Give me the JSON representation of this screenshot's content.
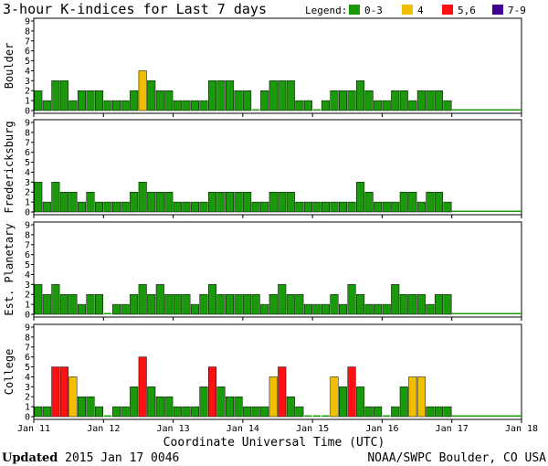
{
  "title": "3-hour K-indices for Last 7 days",
  "legend": {
    "label": "Legend:",
    "items": [
      {
        "label": "0-3",
        "color": "#1a9a0a"
      },
      {
        "label": "4",
        "color": "#f0c000"
      },
      {
        "label": "5,6",
        "color": "#ff1010"
      },
      {
        "label": "7-9",
        "color": "#400090"
      }
    ]
  },
  "xlabel": "Coordinate Universal Time (UTC)",
  "footer": {
    "updated_label": "Updated",
    "updated_value": "2015 Jan 17 0046",
    "source": "NOAA/SWPC Boulder, CO USA"
  },
  "chart_data": {
    "type": "bar",
    "x_tick_labels": [
      "Jan 11",
      "Jan 12",
      "Jan 13",
      "Jan 14",
      "Jan 15",
      "Jan 16",
      "Jan 17",
      "Jan 18"
    ],
    "y_ticks": [
      0,
      1,
      2,
      3,
      4,
      5,
      6,
      7,
      8,
      9
    ],
    "ylim": [
      0,
      9
    ],
    "bins_per_day": 8,
    "grid": false,
    "panels": [
      {
        "name": "Boulder",
        "values": [
          2,
          1,
          3,
          3,
          1,
          2,
          2,
          2,
          1,
          1,
          1,
          2,
          4,
          3,
          2,
          2,
          1,
          1,
          1,
          1,
          3,
          3,
          3,
          2,
          2,
          0,
          2,
          3,
          3,
          3,
          1,
          1,
          0,
          1,
          2,
          2,
          2,
          3,
          2,
          1,
          1,
          2,
          2,
          1,
          2,
          2,
          2,
          1
        ]
      },
      {
        "name": "Fredericksburg",
        "values": [
          3,
          1,
          3,
          2,
          2,
          1,
          2,
          1,
          1,
          1,
          1,
          2,
          3,
          2,
          2,
          2,
          1,
          1,
          1,
          1,
          2,
          2,
          2,
          2,
          2,
          1,
          1,
          2,
          2,
          2,
          1,
          1,
          1,
          1,
          1,
          1,
          1,
          3,
          2,
          1,
          1,
          1,
          2,
          2,
          1,
          2,
          2,
          1
        ]
      },
      {
        "name": "Est. Planetary",
        "values": [
          3,
          2,
          3,
          2,
          2,
          1,
          2,
          2,
          0,
          1,
          1,
          2,
          3,
          2,
          3,
          2,
          2,
          2,
          1,
          2,
          3,
          2,
          2,
          2,
          2,
          2,
          1,
          2,
          3,
          2,
          2,
          1,
          1,
          1,
          2,
          1,
          3,
          2,
          1,
          1,
          1,
          3,
          2,
          2,
          2,
          1,
          2,
          2
        ]
      },
      {
        "name": "College",
        "values": [
          1,
          1,
          5,
          5,
          4,
          2,
          2,
          1,
          0,
          1,
          1,
          3,
          6,
          3,
          2,
          2,
          1,
          1,
          1,
          3,
          5,
          3,
          2,
          2,
          1,
          1,
          1,
          4,
          5,
          2,
          1,
          0,
          0,
          0,
          4,
          3,
          5,
          3,
          1,
          1,
          0,
          1,
          3,
          4,
          4,
          1,
          1,
          1
        ]
      }
    ]
  }
}
